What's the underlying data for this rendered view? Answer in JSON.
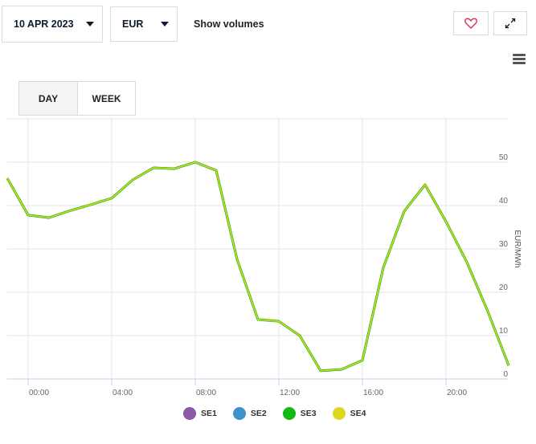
{
  "controls": {
    "date": "10 APR 2023",
    "currency": "EUR",
    "show_volumes": "Show volumes"
  },
  "tabs": [
    {
      "label": "DAY",
      "active": true
    },
    {
      "label": "WEEK",
      "active": false
    }
  ],
  "chart_data": {
    "type": "line",
    "x": [
      "23:00 (prev)",
      "00:00",
      "01:00",
      "02:00",
      "03:00",
      "04:00",
      "05:00",
      "06:00",
      "07:00",
      "08:00",
      "09:00",
      "10:00",
      "11:00",
      "12:00",
      "13:00",
      "14:00",
      "15:00",
      "16:00",
      "17:00",
      "18:00",
      "19:00",
      "20:00",
      "21:00",
      "22:00",
      "23:00"
    ],
    "x_hours": [
      -1,
      0,
      1,
      2,
      3,
      4,
      5,
      6,
      7,
      8,
      9,
      10,
      11,
      12,
      13,
      14,
      15,
      16,
      17,
      18,
      19,
      20,
      21,
      22,
      23
    ],
    "x_tick_labels": [
      "00:00",
      "04:00",
      "08:00",
      "12:00",
      "16:00",
      "20:00"
    ],
    "x_tick_hours": [
      0,
      4,
      8,
      12,
      16,
      20
    ],
    "y_ticks": [
      0,
      10,
      20,
      30,
      40,
      50
    ],
    "ylim": [
      0,
      60
    ],
    "ylabel": "EUR/MWh",
    "series": [
      {
        "name": "SE1",
        "color": "#8b59a8",
        "values": [
          46.3,
          37.8,
          37.2,
          38.8,
          40.2,
          41.7,
          45.9,
          48.7,
          48.5,
          50.0,
          48.1,
          27.6,
          13.7,
          13.3,
          10.0,
          1.9,
          2.2,
          4.3,
          25.7,
          38.7,
          44.8,
          36.3,
          26.9,
          15.6,
          3.1
        ]
      },
      {
        "name": "SE2",
        "color": "#3f93cc",
        "values": [
          46.3,
          37.8,
          37.2,
          38.8,
          40.2,
          41.7,
          45.9,
          48.7,
          48.5,
          50.0,
          48.1,
          27.6,
          13.7,
          13.3,
          10.0,
          1.9,
          2.2,
          4.3,
          25.7,
          38.7,
          44.8,
          36.3,
          26.9,
          15.6,
          3.1
        ]
      },
      {
        "name": "SE3",
        "color": "#14b814",
        "values": [
          46.3,
          37.8,
          37.2,
          38.8,
          40.2,
          41.7,
          45.9,
          48.7,
          48.5,
          50.0,
          48.1,
          27.6,
          13.7,
          13.3,
          10.0,
          1.9,
          2.2,
          4.3,
          25.7,
          38.7,
          44.8,
          36.3,
          26.9,
          15.6,
          3.1
        ]
      },
      {
        "name": "SE4",
        "color": "#dcd820",
        "values": [
          46.3,
          37.8,
          37.2,
          38.8,
          40.2,
          41.7,
          45.9,
          48.7,
          48.5,
          50.0,
          48.1,
          27.6,
          13.7,
          13.3,
          10.0,
          1.9,
          2.2,
          4.3,
          25.7,
          38.7,
          44.8,
          36.3,
          26.9,
          15.6,
          3.1
        ]
      }
    ],
    "legend": "bottom-center",
    "grid": true
  }
}
